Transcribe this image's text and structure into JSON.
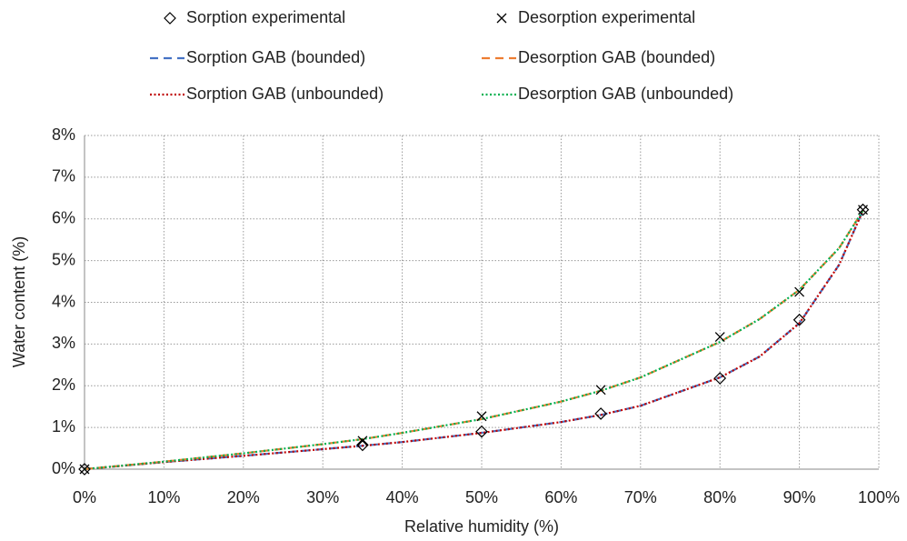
{
  "chart_data": {
    "type": "scatter",
    "xlabel": "Relative humidity (%)",
    "ylabel": "Water content (%)",
    "xlim": [
      0,
      100
    ],
    "ylim": [
      0,
      8
    ],
    "xticks": [
      {
        "value": 0,
        "label": "0%"
      },
      {
        "value": 10,
        "label": "10%"
      },
      {
        "value": 20,
        "label": "20%"
      },
      {
        "value": 30,
        "label": "30%"
      },
      {
        "value": 40,
        "label": "40%"
      },
      {
        "value": 50,
        "label": "50%"
      },
      {
        "value": 60,
        "label": "60%"
      },
      {
        "value": 70,
        "label": "70%"
      },
      {
        "value": 80,
        "label": "80%"
      },
      {
        "value": 90,
        "label": "90%"
      },
      {
        "value": 100,
        "label": "100%"
      }
    ],
    "yticks": [
      {
        "value": 0,
        "label": "0%"
      },
      {
        "value": 1,
        "label": "1%"
      },
      {
        "value": 2,
        "label": "2%"
      },
      {
        "value": 3,
        "label": "3%"
      },
      {
        "value": 4,
        "label": "4%"
      },
      {
        "value": 5,
        "label": "5%"
      },
      {
        "value": 6,
        "label": "6%"
      },
      {
        "value": 7,
        "label": "7%"
      },
      {
        "value": 8,
        "label": "8%"
      }
    ],
    "grid": true,
    "legend": "top",
    "series": [
      {
        "name": "Sorption experimental",
        "color": "#000000",
        "marker": "diamond",
        "x": [
          0,
          35,
          50,
          65,
          80,
          90,
          98
        ],
        "values": [
          0,
          0.58,
          0.9,
          1.33,
          2.18,
          3.58,
          6.22
        ]
      },
      {
        "name": "Desorption experimental",
        "color": "#000000",
        "marker": "x",
        "x": [
          0,
          35,
          50,
          65,
          80,
          90,
          98
        ],
        "values": [
          0,
          0.68,
          1.27,
          1.9,
          3.17,
          4.25,
          6.22
        ]
      },
      {
        "name": "Sorption GAB (bounded)",
        "color": "#4472c4",
        "line": "dashed",
        "x": [
          0,
          10,
          20,
          30,
          35,
          40,
          50,
          60,
          65,
          70,
          80,
          85,
          90,
          95,
          98
        ],
        "values": [
          0,
          0.17,
          0.32,
          0.48,
          0.56,
          0.65,
          0.87,
          1.13,
          1.3,
          1.52,
          2.2,
          2.7,
          3.5,
          4.9,
          6.2
        ]
      },
      {
        "name": "Desorption GAB (bounded)",
        "color": "#ed7d31",
        "line": "dashed",
        "x": [
          0,
          10,
          20,
          30,
          35,
          40,
          50,
          60,
          65,
          70,
          80,
          85,
          90,
          95,
          98
        ],
        "values": [
          0,
          0.18,
          0.38,
          0.6,
          0.72,
          0.87,
          1.2,
          1.62,
          1.88,
          2.2,
          3.05,
          3.6,
          4.3,
          5.3,
          6.2
        ]
      },
      {
        "name": "Sorption GAB (unbounded)",
        "color": "#c00000",
        "line": "dotted",
        "x": [
          0,
          10,
          20,
          30,
          35,
          40,
          50,
          60,
          65,
          70,
          80,
          85,
          90,
          95,
          98
        ],
        "values": [
          0,
          0.17,
          0.32,
          0.48,
          0.56,
          0.65,
          0.87,
          1.13,
          1.3,
          1.52,
          2.2,
          2.7,
          3.5,
          4.9,
          6.2
        ]
      },
      {
        "name": "Desorption GAB (unbounded)",
        "color": "#00b050",
        "line": "dotted",
        "x": [
          0,
          10,
          20,
          30,
          35,
          40,
          50,
          60,
          65,
          70,
          80,
          85,
          90,
          95,
          98
        ],
        "values": [
          0,
          0.18,
          0.38,
          0.6,
          0.72,
          0.87,
          1.2,
          1.62,
          1.88,
          2.2,
          3.05,
          3.6,
          4.3,
          5.3,
          6.2
        ]
      }
    ]
  }
}
